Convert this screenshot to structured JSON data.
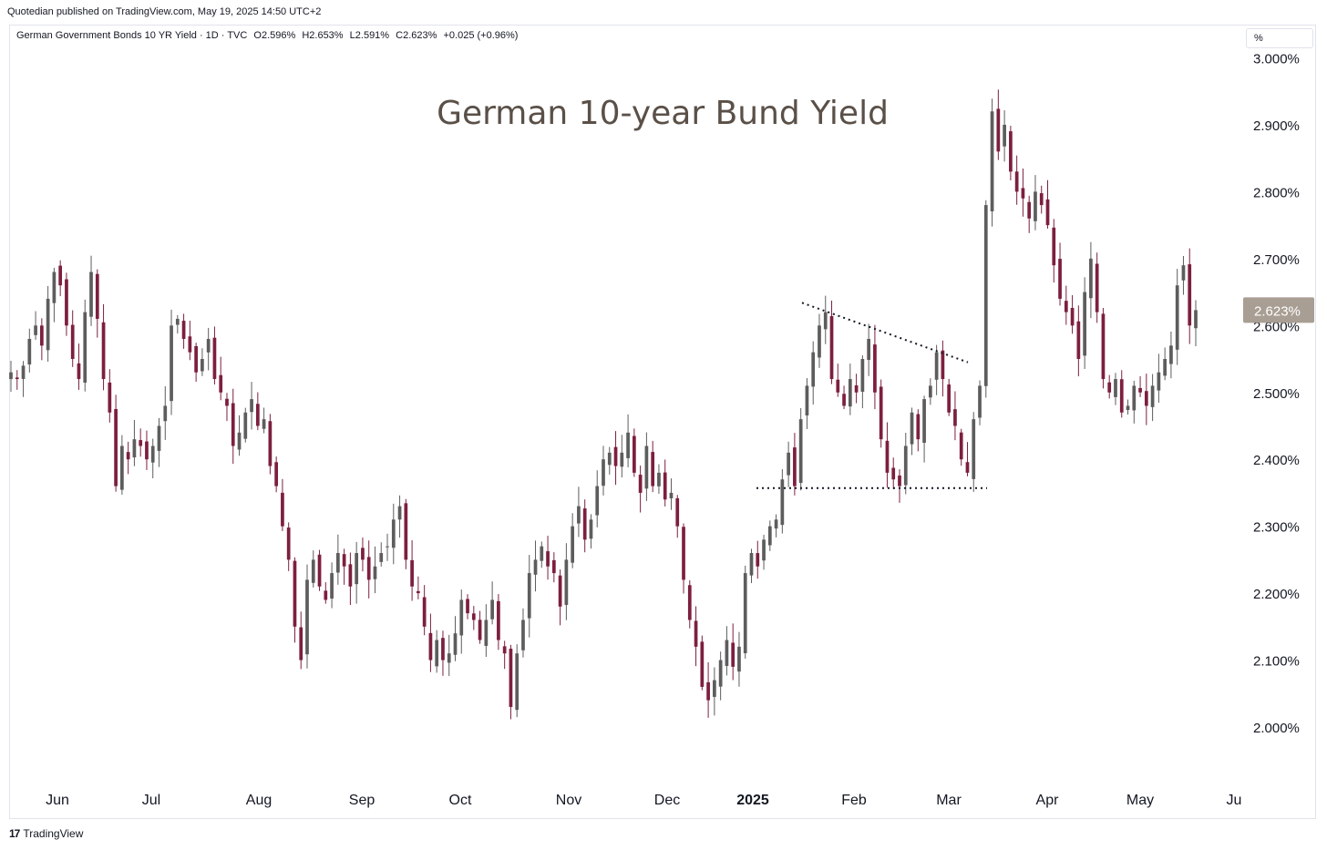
{
  "header": {
    "published": "Quotedian published on TradingView.com, May 19, 2025 14:50 UTC+2"
  },
  "legend": {
    "symbol": "German Government Bonds 10 YR Yield · 1D · TVC",
    "open": "O2.596%",
    "high": "H2.653%",
    "low": "L2.591%",
    "close": "C2.623%",
    "change": "+0.025 (+0.96%)"
  },
  "unit_label": "%",
  "footer": {
    "logo_mark": "17",
    "brand": "TradingView"
  },
  "colors": {
    "up": "#5d5d5d",
    "down": "#7d1f3f",
    "price_tag": "#a89e93",
    "title": "#5a5048"
  },
  "chart_data": {
    "type": "candlestick",
    "title": "German 10-year Bund Yield",
    "xlabel": "",
    "ylabel": "",
    "ylim": [
      1.9,
      3.05
    ],
    "y_ticks": [
      "3.000%",
      "2.900%",
      "2.800%",
      "2.700%",
      "2.600%",
      "2.500%",
      "2.400%",
      "2.300%",
      "2.200%",
      "2.100%",
      "2.000%"
    ],
    "x_ticks": [
      "Jun",
      "Jul",
      "Aug",
      "Sep",
      "Oct",
      "Nov",
      "Dec",
      "2025",
      "Feb",
      "Mar",
      "Apr",
      "May",
      "Ju"
    ],
    "last_price": "2.623%",
    "grid": false,
    "series": [
      {
        "values": [
          2.53,
          2.52,
          2.54,
          2.58,
          2.6,
          2.57,
          2.64,
          2.68,
          2.66,
          2.6,
          2.55,
          2.52,
          2.62,
          2.68,
          2.61,
          2.52,
          2.47,
          2.36,
          2.42,
          2.4,
          2.43,
          2.42,
          2.4,
          2.42,
          2.45,
          2.48,
          2.6,
          2.61,
          2.58,
          2.56,
          2.53,
          2.55,
          2.58,
          2.52,
          2.5,
          2.48,
          2.42,
          2.44,
          2.47,
          2.49,
          2.45,
          2.46,
          2.39,
          2.36,
          2.3,
          2.25,
          2.15,
          2.1,
          2.22,
          2.25,
          2.21,
          2.19,
          2.23,
          2.26,
          2.24,
          2.21,
          2.26,
          2.25,
          2.22,
          2.24,
          2.26,
          2.27,
          2.31,
          2.33,
          2.25,
          2.21,
          2.2,
          2.15,
          2.1,
          2.13,
          2.1,
          2.11,
          2.14,
          2.19,
          2.17,
          2.16,
          2.13,
          2.16,
          2.19,
          2.13,
          2.11,
          2.03,
          2.11,
          2.16,
          2.23,
          2.25,
          2.27,
          2.24,
          2.23,
          2.18,
          2.25,
          2.3,
          2.33,
          2.28,
          2.31,
          2.36,
          2.4,
          2.41,
          2.39,
          2.41,
          2.44,
          2.38,
          2.35,
          2.42,
          2.36,
          2.38,
          2.34,
          2.35,
          2.3,
          2.22,
          2.16,
          2.12,
          2.06,
          2.04,
          2.07,
          2.1,
          2.13,
          2.09,
          2.12,
          2.23,
          2.26,
          2.24,
          2.28,
          2.3,
          2.31,
          2.37,
          2.41,
          2.36,
          2.46,
          2.51,
          2.56,
          2.6,
          2.62,
          2.52,
          2.5,
          2.48,
          2.52,
          2.5,
          2.55,
          2.58,
          2.5,
          2.43,
          2.38,
          2.37,
          2.36,
          2.42,
          2.47,
          2.43,
          2.49,
          2.51,
          2.56,
          2.52,
          2.47,
          2.45,
          2.4,
          2.38,
          2.46,
          2.51,
          2.78,
          2.92,
          2.86,
          2.9,
          2.83,
          2.8,
          2.79,
          2.76,
          2.8,
          2.78,
          2.75,
          2.69,
          2.64,
          2.62,
          2.6,
          2.55,
          2.65,
          2.7,
          2.62,
          2.52,
          2.5,
          2.52,
          2.47,
          2.48,
          2.51,
          2.5,
          2.48,
          2.51,
          2.53,
          2.55,
          2.57,
          2.66,
          2.69,
          2.6,
          2.623
        ]
      }
    ]
  },
  "annotations": {
    "resistance_line": {
      "from": 0.66,
      "to": 0.8,
      "y_start": 2.634,
      "y_end": 2.545
    },
    "support_line": {
      "from": 0.62,
      "to": 0.815,
      "y": 2.357
    }
  }
}
